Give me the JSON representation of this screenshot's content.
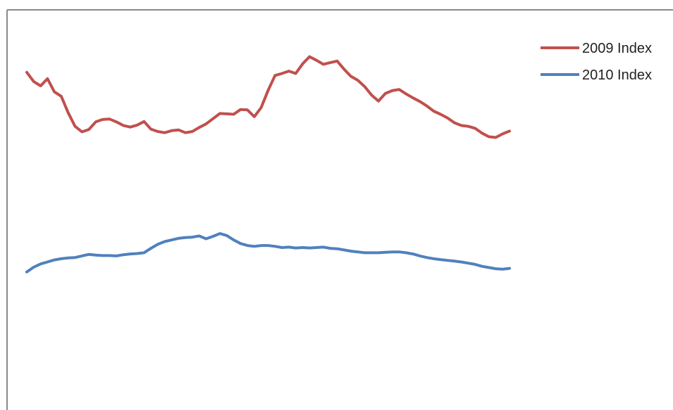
{
  "chart_data": {
    "type": "line",
    "title": "",
    "xlabel": "",
    "ylabel": "",
    "grid": false,
    "legend_position": "top-right",
    "ylim": [
      0,
      100
    ],
    "x": [
      0,
      1,
      2,
      3,
      4,
      5,
      6,
      7,
      8,
      9,
      10,
      11,
      12,
      13,
      14,
      15,
      16,
      17,
      18,
      19,
      20,
      21,
      22,
      23,
      24,
      25,
      26,
      27,
      28,
      29,
      30,
      31,
      32,
      33,
      34,
      35,
      36,
      37,
      38,
      39,
      40,
      41,
      42,
      43,
      44,
      45,
      46,
      47,
      48,
      49,
      50,
      51,
      52,
      53,
      54,
      55,
      56,
      57,
      58,
      59,
      60,
      61,
      62,
      63,
      64,
      65,
      66,
      67,
      68,
      69,
      70
    ],
    "series": [
      {
        "name": "2009 Index",
        "color": "#c0504d",
        "values": [
          84.4,
          82.1,
          81.0,
          82.8,
          79.5,
          78.4,
          74.3,
          70.9,
          69.5,
          70.1,
          72.0,
          72.6,
          72.7,
          72.0,
          71.1,
          70.7,
          71.2,
          72.1,
          70.2,
          69.6,
          69.3,
          69.8,
          70.0,
          69.3,
          69.6,
          70.6,
          71.5,
          72.8,
          74.1,
          74.0,
          73.9,
          75.1,
          75.0,
          73.3,
          75.6,
          79.9,
          83.6,
          84.1,
          84.7,
          84.1,
          86.5,
          88.3,
          87.4,
          86.4,
          86.8,
          87.2,
          85.2,
          83.4,
          82.4,
          80.8,
          78.7,
          77.2,
          79.1,
          79.8,
          80.1,
          79.0,
          78.0,
          77.1,
          76.0,
          74.7,
          73.9,
          73.0,
          71.8,
          71.1,
          70.9,
          70.4,
          69.2,
          68.3,
          68.1,
          69.0,
          69.7
        ]
      },
      {
        "name": "2010 Index",
        "color": "#4f81bd",
        "values": [
          34.5,
          35.7,
          36.5,
          37.0,
          37.5,
          37.8,
          38.0,
          38.1,
          38.5,
          38.9,
          38.7,
          38.6,
          38.6,
          38.5,
          38.8,
          39.0,
          39.1,
          39.3,
          40.4,
          41.4,
          42.1,
          42.5,
          42.9,
          43.1,
          43.2,
          43.5,
          42.8,
          43.4,
          44.1,
          43.6,
          42.5,
          41.6,
          41.1,
          40.9,
          41.1,
          41.1,
          40.9,
          40.6,
          40.7,
          40.5,
          40.6,
          40.5,
          40.6,
          40.7,
          40.4,
          40.3,
          40.0,
          39.7,
          39.5,
          39.3,
          39.3,
          39.3,
          39.4,
          39.5,
          39.5,
          39.3,
          39.0,
          38.5,
          38.1,
          37.8,
          37.6,
          37.4,
          37.2,
          37.0,
          36.7,
          36.4,
          35.9,
          35.6,
          35.3,
          35.2,
          35.4
        ]
      }
    ]
  }
}
